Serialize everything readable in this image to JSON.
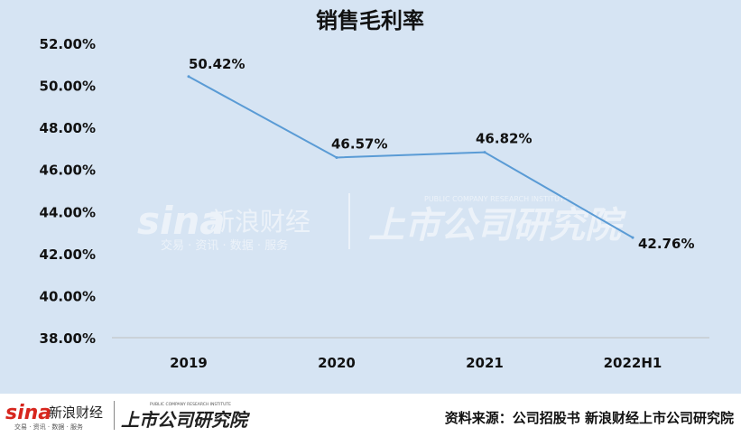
{
  "chart_data": {
    "type": "line",
    "title": "销售毛利率",
    "categories": [
      "2019",
      "2020",
      "2021",
      "2022H1"
    ],
    "series": [
      {
        "values": [
          50.42,
          46.57,
          46.82,
          42.76
        ]
      }
    ],
    "data_labels": [
      "50.42%",
      "46.57%",
      "46.82%",
      "42.76%"
    ],
    "ylim": [
      38,
      52
    ],
    "y_ticks": [
      52,
      50,
      48,
      46,
      44,
      42,
      40,
      38
    ],
    "y_tick_labels": [
      "52.00%",
      "50.00%",
      "48.00%",
      "46.00%",
      "44.00%",
      "42.00%",
      "40.00%",
      "38.00%"
    ],
    "grid": false,
    "line_color": "#5a9bd5",
    "background_color": "#d6e4f3"
  },
  "watermark": {
    "brand": "sina",
    "cn_name": "新浪财经",
    "services": "交易 · 资讯 · 数据 · 服务",
    "institute": "上市公司研究院",
    "institute_en": "PUBLIC COMPANY RESEARCH INSTITUTE"
  },
  "footer": {
    "source": "资料来源：公司招股书 新浪财经上市公司研究院"
  }
}
